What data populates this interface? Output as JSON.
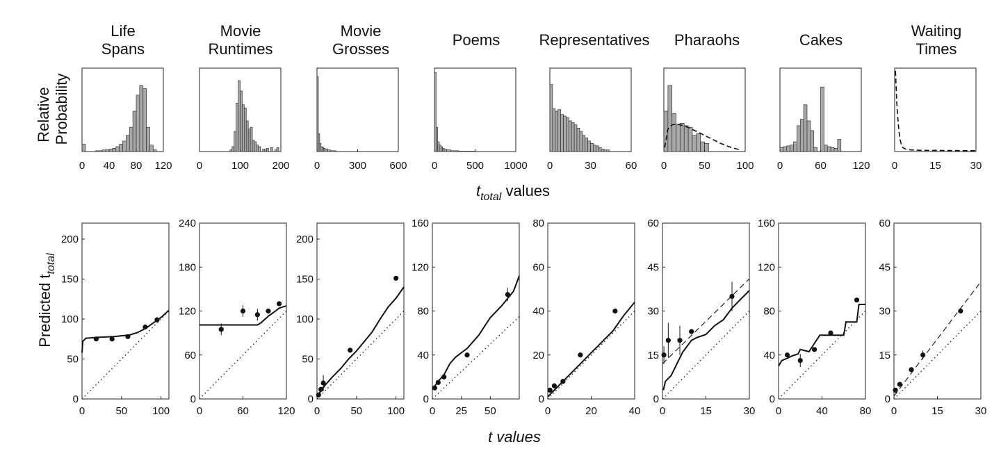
{
  "figure": {
    "top_ylabel": [
      "Relative",
      "Probability"
    ],
    "top_xlabel_main": "t",
    "top_xlabel_sub": "total",
    "top_xlabel_rest": " values",
    "bottom_ylabel_main": "Predicted  t",
    "bottom_ylabel_sub": "total",
    "bottom_xlabel": "t  values"
  },
  "chart_data": [
    {
      "type": "bar",
      "panel": "top",
      "title": [
        "Life",
        "Spans"
      ],
      "xlim": [
        0,
        120
      ],
      "xticks": [
        0,
        40,
        80,
        120
      ],
      "bins": [
        [
          0,
          5,
          0.09
        ],
        [
          20,
          25,
          0.01
        ],
        [
          25,
          30,
          0.01
        ],
        [
          30,
          35,
          0.02
        ],
        [
          35,
          40,
          0.02
        ],
        [
          40,
          45,
          0.03
        ],
        [
          45,
          50,
          0.04
        ],
        [
          50,
          55,
          0.06
        ],
        [
          55,
          60,
          0.09
        ],
        [
          60,
          65,
          0.13
        ],
        [
          65,
          70,
          0.2
        ],
        [
          70,
          75,
          0.3
        ],
        [
          75,
          80,
          0.5
        ],
        [
          80,
          85,
          0.7
        ],
        [
          85,
          90,
          0.82
        ],
        [
          90,
          95,
          0.78
        ],
        [
          95,
          100,
          0.3
        ],
        [
          100,
          105,
          0.08
        ],
        [
          105,
          110,
          0.02
        ]
      ]
    },
    {
      "type": "bar",
      "panel": "top",
      "title": [
        "Movie",
        "Runtimes"
      ],
      "xlim": [
        0,
        200
      ],
      "xticks": [
        0,
        100,
        200
      ],
      "bins": [
        [
          75,
          80,
          0.02
        ],
        [
          80,
          85,
          0.06
        ],
        [
          85,
          90,
          0.25
        ],
        [
          90,
          95,
          0.6
        ],
        [
          95,
          100,
          0.88
        ],
        [
          100,
          105,
          0.75
        ],
        [
          105,
          110,
          0.58
        ],
        [
          110,
          115,
          0.54
        ],
        [
          115,
          120,
          0.38
        ],
        [
          120,
          125,
          0.28
        ],
        [
          125,
          130,
          0.3
        ],
        [
          130,
          135,
          0.14
        ],
        [
          135,
          140,
          0.12
        ],
        [
          140,
          145,
          0.08
        ],
        [
          145,
          150,
          0.06
        ],
        [
          155,
          160,
          0.03
        ],
        [
          160,
          165,
          0.02
        ],
        [
          165,
          170,
          0.04
        ],
        [
          175,
          180,
          0.05
        ],
        [
          185,
          190,
          0.02
        ],
        [
          190,
          195,
          0.05
        ]
      ]
    },
    {
      "type": "bar",
      "panel": "top",
      "title": [
        "Movie",
        "Grosses"
      ],
      "xlim": [
        0,
        600
      ],
      "xticks": [
        0,
        300,
        600
      ],
      "bins": [
        [
          0,
          10,
          0.93
        ],
        [
          10,
          20,
          0.22
        ],
        [
          20,
          30,
          0.1
        ],
        [
          30,
          40,
          0.06
        ],
        [
          40,
          50,
          0.05
        ],
        [
          50,
          60,
          0.04
        ],
        [
          60,
          80,
          0.03
        ],
        [
          80,
          100,
          0.02
        ],
        [
          100,
          140,
          0.01
        ]
      ]
    },
    {
      "type": "bar",
      "panel": "top",
      "title": [
        "Poems"
      ],
      "xlim": [
        0,
        1000
      ],
      "xticks": [
        0,
        500,
        1000
      ],
      "bins": [
        [
          0,
          20,
          0.98
        ],
        [
          20,
          40,
          0.3
        ],
        [
          40,
          60,
          0.12
        ],
        [
          60,
          80,
          0.08
        ],
        [
          80,
          100,
          0.06
        ],
        [
          100,
          120,
          0.04
        ],
        [
          120,
          150,
          0.03
        ],
        [
          150,
          200,
          0.02
        ],
        [
          200,
          300,
          0.01
        ],
        [
          300,
          500,
          0.005
        ]
      ]
    },
    {
      "type": "bar",
      "panel": "top",
      "title": [
        "Representatives"
      ],
      "xlim": [
        0,
        60
      ],
      "xticks": [
        0,
        30,
        60
      ],
      "bins": [
        [
          0,
          2,
          0.83
        ],
        [
          2,
          4,
          0.53
        ],
        [
          4,
          6,
          0.5
        ],
        [
          6,
          8,
          0.52
        ],
        [
          8,
          10,
          0.46
        ],
        [
          10,
          12,
          0.44
        ],
        [
          12,
          14,
          0.42
        ],
        [
          14,
          16,
          0.38
        ],
        [
          16,
          18,
          0.36
        ],
        [
          18,
          20,
          0.33
        ],
        [
          20,
          22,
          0.29
        ],
        [
          22,
          24,
          0.25
        ],
        [
          24,
          26,
          0.2
        ],
        [
          26,
          28,
          0.17
        ],
        [
          28,
          30,
          0.13
        ],
        [
          30,
          32,
          0.1
        ],
        [
          32,
          34,
          0.08
        ],
        [
          34,
          36,
          0.07
        ],
        [
          36,
          38,
          0.05
        ],
        [
          38,
          40,
          0.03
        ],
        [
          40,
          42,
          0.02
        ],
        [
          42,
          44,
          0.02
        ]
      ]
    },
    {
      "type": "bar",
      "panel": "top",
      "title": [
        "Pharaohs"
      ],
      "xlim": [
        0,
        100
      ],
      "xticks": [
        0,
        50,
        100
      ],
      "bins": [
        [
          0,
          5,
          0.5
        ],
        [
          5,
          10,
          0.82
        ],
        [
          10,
          15,
          0.47
        ],
        [
          15,
          20,
          0.34
        ],
        [
          20,
          25,
          0.35
        ],
        [
          25,
          30,
          0.32
        ],
        [
          30,
          35,
          0.3
        ],
        [
          35,
          40,
          0.2
        ],
        [
          40,
          45,
          0.22
        ],
        [
          45,
          50,
          0.12
        ],
        [
          50,
          55,
          0.1
        ]
      ],
      "curve": [
        [
          1,
          0.05
        ],
        [
          5,
          0.28
        ],
        [
          10,
          0.33
        ],
        [
          15,
          0.34
        ],
        [
          20,
          0.33
        ],
        [
          30,
          0.3
        ],
        [
          40,
          0.25
        ],
        [
          50,
          0.2
        ],
        [
          60,
          0.15
        ],
        [
          70,
          0.1
        ],
        [
          80,
          0.06
        ],
        [
          90,
          0.03
        ],
        [
          95,
          0.02
        ]
      ]
    },
    {
      "type": "bar",
      "panel": "top",
      "title": [
        "Cakes"
      ],
      "xlim": [
        0,
        120
      ],
      "xticks": [
        0,
        60,
        120
      ],
      "bins": [
        [
          0,
          5,
          0.05
        ],
        [
          5,
          10,
          0.06
        ],
        [
          10,
          15,
          0.07
        ],
        [
          15,
          20,
          0.08
        ],
        [
          20,
          25,
          0.12
        ],
        [
          25,
          30,
          0.32
        ],
        [
          30,
          35,
          0.4
        ],
        [
          35,
          40,
          0.58
        ],
        [
          40,
          45,
          0.38
        ],
        [
          45,
          50,
          0.26
        ],
        [
          50,
          55,
          0.05
        ],
        [
          60,
          65,
          0.8
        ],
        [
          65,
          70,
          0.08
        ],
        [
          70,
          75,
          0.06
        ],
        [
          75,
          80,
          0.05
        ],
        [
          80,
          85,
          0.04
        ],
        [
          85,
          90,
          0.15
        ]
      ]
    },
    {
      "type": "line",
      "panel": "top",
      "title": [
        "Waiting",
        "Times"
      ],
      "xlim": [
        0,
        30
      ],
      "xticks": [
        0,
        15,
        30
      ],
      "curve": [
        [
          0.3,
          1.0
        ],
        [
          0.8,
          0.6
        ],
        [
          1.2,
          0.4
        ],
        [
          1.6,
          0.25
        ],
        [
          2.0,
          0.15
        ],
        [
          2.5,
          0.08
        ],
        [
          3,
          0.05
        ],
        [
          4,
          0.03
        ],
        [
          6,
          0.02
        ],
        [
          10,
          0.015
        ],
        [
          30,
          0.01
        ]
      ]
    },
    {
      "type": "line",
      "panel": "bottom",
      "xlim": [
        0,
        110
      ],
      "xticks": [
        0,
        50,
        100
      ],
      "ylim": [
        0,
        220
      ],
      "yticks": [
        0,
        50,
        100,
        150,
        200
      ],
      "solid": [
        [
          0,
          58
        ],
        [
          1,
          72
        ],
        [
          5,
          76
        ],
        [
          20,
          77
        ],
        [
          40,
          78
        ],
        [
          60,
          80
        ],
        [
          70,
          83
        ],
        [
          80,
          88
        ],
        [
          90,
          95
        ],
        [
          100,
          102
        ],
        [
          110,
          111
        ]
      ],
      "points": [
        [
          18,
          75,
          null
        ],
        [
          38,
          75,
          null
        ],
        [
          58,
          78,
          null
        ],
        [
          80,
          90,
          null
        ],
        [
          95,
          99,
          null
        ]
      ]
    },
    {
      "type": "line",
      "panel": "bottom",
      "xlim": [
        0,
        120
      ],
      "xticks": [
        0,
        60,
        120
      ],
      "ylim": [
        0,
        240
      ],
      "yticks": [
        0,
        60,
        120,
        180,
        240
      ],
      "solid": [
        [
          0,
          101
        ],
        [
          80,
          101
        ],
        [
          85,
          104
        ],
        [
          95,
          113
        ],
        [
          105,
          120
        ],
        [
          110,
          124
        ],
        [
          120,
          127
        ]
      ],
      "points": [
        [
          30,
          95,
          8
        ],
        [
          60,
          120,
          8
        ],
        [
          80,
          115,
          8
        ],
        [
          95,
          120,
          null
        ],
        [
          110,
          130,
          null
        ]
      ]
    },
    {
      "type": "line",
      "panel": "bottom",
      "xlim": [
        0,
        110
      ],
      "xticks": [
        0,
        50,
        100
      ],
      "ylim": [
        0,
        220
      ],
      "yticks": [
        0,
        50,
        100,
        150,
        200
      ],
      "solid": [
        [
          0,
          3
        ],
        [
          5,
          10
        ],
        [
          10,
          17
        ],
        [
          20,
          28
        ],
        [
          30,
          38
        ],
        [
          40,
          50
        ],
        [
          50,
          60
        ],
        [
          60,
          72
        ],
        [
          70,
          84
        ],
        [
          80,
          100
        ],
        [
          90,
          115
        ],
        [
          100,
          126
        ],
        [
          110,
          140
        ]
      ],
      "points": [
        [
          2,
          5,
          null
        ],
        [
          5,
          12,
          null
        ],
        [
          8,
          20,
          10
        ],
        [
          42,
          61,
          null
        ],
        [
          100,
          151,
          null
        ]
      ]
    },
    {
      "type": "line",
      "panel": "bottom",
      "xlim": [
        0,
        75
      ],
      "xticks": [
        0,
        25,
        50
      ],
      "ylim": [
        0,
        160
      ],
      "yticks": [
        0,
        40,
        80,
        120,
        160
      ],
      "solid": [
        [
          0,
          9
        ],
        [
          5,
          16
        ],
        [
          10,
          22
        ],
        [
          15,
          32
        ],
        [
          20,
          38
        ],
        [
          30,
          46
        ],
        [
          40,
          58
        ],
        [
          50,
          74
        ],
        [
          60,
          85
        ],
        [
          70,
          98
        ],
        [
          75,
          112
        ]
      ],
      "points": [
        [
          2,
          10,
          null
        ],
        [
          5,
          15,
          null
        ],
        [
          10,
          20,
          null
        ],
        [
          30,
          40,
          null
        ],
        [
          65,
          95,
          6
        ]
      ]
    },
    {
      "type": "line",
      "panel": "bottom",
      "xlim": [
        0,
        40
      ],
      "xticks": [
        0,
        20,
        40
      ],
      "ylim": [
        0,
        80
      ],
      "yticks": [
        0,
        20,
        40,
        60,
        80
      ],
      "solid": [
        [
          0,
          1
        ],
        [
          5,
          6
        ],
        [
          10,
          11
        ],
        [
          15,
          16
        ],
        [
          20,
          21
        ],
        [
          25,
          26
        ],
        [
          30,
          31
        ],
        [
          35,
          38
        ],
        [
          40,
          44
        ]
      ],
      "points": [
        [
          1,
          4,
          null
        ],
        [
          3,
          6,
          null
        ],
        [
          7,
          8,
          null
        ],
        [
          15,
          20,
          null
        ],
        [
          31,
          40,
          null
        ]
      ]
    },
    {
      "type": "line",
      "panel": "bottom",
      "xlim": [
        0,
        30
      ],
      "xticks": [
        0,
        15,
        30
      ],
      "ylim": [
        0,
        60
      ],
      "yticks": [
        0,
        15,
        30,
        45,
        60
      ],
      "solid": [
        [
          0.3,
          3
        ],
        [
          1,
          6
        ],
        [
          3,
          8
        ],
        [
          5,
          12
        ],
        [
          7,
          16
        ],
        [
          10,
          20
        ],
        [
          12,
          21
        ],
        [
          15,
          22
        ],
        [
          18,
          25
        ],
        [
          21,
          27
        ],
        [
          24,
          31
        ],
        [
          27,
          34
        ],
        [
          30,
          37
        ]
      ],
      "dashed": [
        [
          0,
          12
        ],
        [
          30,
          41
        ]
      ],
      "points": [
        [
          0.5,
          15,
          3
        ],
        [
          2,
          20,
          6
        ],
        [
          6,
          20,
          5
        ],
        [
          10,
          23,
          null
        ],
        [
          24,
          35,
          5
        ]
      ]
    },
    {
      "type": "line",
      "panel": "bottom",
      "xlim": [
        0,
        80
      ],
      "xticks": [
        0,
        40,
        80
      ],
      "ylim": [
        0,
        160
      ],
      "yticks": [
        0,
        40,
        80,
        120,
        160
      ],
      "solid": [
        [
          0,
          30
        ],
        [
          3,
          35
        ],
        [
          8,
          37
        ],
        [
          12,
          39
        ],
        [
          18,
          41
        ],
        [
          20,
          45
        ],
        [
          28,
          43
        ],
        [
          32,
          49
        ],
        [
          38,
          58
        ],
        [
          50,
          58
        ],
        [
          60,
          58
        ],
        [
          62,
          70
        ],
        [
          72,
          70
        ],
        [
          74,
          86
        ],
        [
          80,
          86
        ]
      ],
      "points": [
        [
          8,
          40,
          null
        ],
        [
          20,
          35,
          6
        ],
        [
          33,
          45,
          null
        ],
        [
          48,
          60,
          null
        ],
        [
          72,
          90,
          null
        ]
      ]
    },
    {
      "type": "line",
      "panel": "bottom",
      "xlim": [
        0,
        30
      ],
      "xticks": [
        0,
        15,
        30
      ],
      "ylim": [
        0,
        60
      ],
      "yticks": [
        0,
        15,
        30,
        45,
        60
      ],
      "dashed": [
        [
          0,
          1
        ],
        [
          30,
          40
        ]
      ],
      "points": [
        [
          0.5,
          3,
          null
        ],
        [
          2,
          5,
          null
        ],
        [
          6,
          10,
          null
        ],
        [
          10,
          15,
          1.5
        ],
        [
          23,
          30,
          null
        ]
      ]
    }
  ]
}
